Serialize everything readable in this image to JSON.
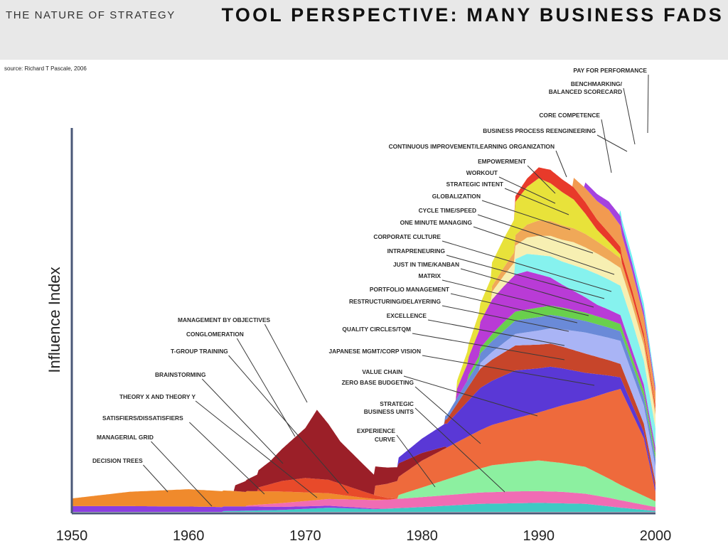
{
  "header": {
    "deck_title": "THE NATURE OF STRATEGY",
    "slide_title": "TOOL PERSPECTIVE: MANY BUSINESS FADS"
  },
  "source_note": "source: Richard T Pascale,  2006",
  "chart_data": {
    "type": "area",
    "title": "",
    "xlabel": "",
    "ylabel": "Influence Index",
    "xlim": [
      1950,
      2000
    ],
    "x_ticks": [
      "1950",
      "1960",
      "1970",
      "1980",
      "1990",
      "2000"
    ],
    "grid": false,
    "legend": "none",
    "layers": [
      {
        "name": "EXPERIENCE CURVE",
        "color": "#3fc9c4",
        "points": [
          [
            1963,
            0.04
          ],
          [
            1968,
            0.1
          ],
          [
            1972,
            0.22
          ],
          [
            1976,
            0.14
          ],
          [
            1980,
            0.25
          ],
          [
            1985,
            0.42
          ],
          [
            1990,
            0.47
          ],
          [
            1994,
            0.42
          ],
          [
            1997,
            0.22
          ],
          [
            2000,
            0.05
          ]
        ]
      },
      {
        "name": "DECISION TREES",
        "color": "#8a3ee0",
        "points": [
          [
            1950,
            0.3
          ],
          [
            1955,
            0.3
          ],
          [
            1960,
            0.28
          ],
          [
            1963,
            0.25
          ],
          [
            1966,
            0.2
          ],
          [
            1968,
            0.16
          ],
          [
            1972,
            0.1
          ],
          [
            1975,
            0.05
          ],
          [
            1977,
            0.0
          ]
        ]
      },
      {
        "name": "STRATEGIC BUSINESS UNITS",
        "color": "#f06cb4",
        "points": [
          [
            1965,
            0.05
          ],
          [
            1968,
            0.2
          ],
          [
            1972,
            0.35
          ],
          [
            1976,
            0.45
          ],
          [
            1980,
            0.52
          ],
          [
            1984,
            0.58
          ],
          [
            1988,
            0.62
          ],
          [
            1992,
            0.6
          ],
          [
            1996,
            0.45
          ],
          [
            2000,
            0.2
          ]
        ]
      },
      {
        "name": "MANAGERIAL GRID",
        "color": "#f08a2c",
        "points": [
          [
            1950,
            0.4
          ],
          [
            1955,
            0.75
          ],
          [
            1960,
            0.9
          ],
          [
            1964,
            0.8
          ],
          [
            1968,
            0.6
          ],
          [
            1972,
            0.3
          ],
          [
            1975,
            0.1
          ],
          [
            1977,
            0.0
          ]
        ]
      },
      {
        "name": "ZERO BASE BUDGETING",
        "color": "#e84a2a",
        "points": [
          [
            1966,
            0.2
          ],
          [
            1968,
            0.55
          ],
          [
            1970,
            0.75
          ],
          [
            1972,
            0.7
          ],
          [
            1974,
            0.45
          ],
          [
            1976,
            0.2
          ],
          [
            1978,
            0.0
          ]
        ]
      },
      {
        "name": "JAPANESE MGMT/CORP VISION",
        "color": "#8cf0a0",
        "points": [
          [
            1978,
            0.2
          ],
          [
            1982,
            0.8
          ],
          [
            1986,
            1.4
          ],
          [
            1990,
            1.6
          ],
          [
            1994,
            1.4
          ],
          [
            1997,
            0.8
          ],
          [
            2000,
            0.3
          ]
        ]
      },
      {
        "name": "PAY FOR PERFORMANCE",
        "color": "#ee6a3c",
        "points": [
          [
            1976,
            0.5
          ],
          [
            1980,
            1.4
          ],
          [
            1985,
            2.0
          ],
          [
            1990,
            2.5
          ],
          [
            1994,
            3.5
          ],
          [
            1997,
            5.0
          ],
          [
            1999,
            3.0
          ],
          [
            2000,
            0.5
          ]
        ]
      },
      {
        "name": "MANAGEMENT BY OBJECTIVES",
        "color": "#9b1f28",
        "points": [
          [
            1964,
            0.3
          ],
          [
            1967,
            1.2
          ],
          [
            1970,
            2.6
          ],
          [
            1971,
            3.6
          ],
          [
            1973,
            2.2
          ],
          [
            1976,
            1.0
          ],
          [
            1980,
            0.4
          ],
          [
            1982,
            0.1
          ]
        ]
      },
      {
        "name": "QUALITY CIRCLES/TQM",
        "color": "#5a38d6",
        "points": [
          [
            1978,
            0.3
          ],
          [
            1982,
            1.2
          ],
          [
            1985,
            2.2
          ],
          [
            1988,
            2.5
          ],
          [
            1991,
            2.2
          ],
          [
            1994,
            1.4
          ],
          [
            1997,
            0.6
          ],
          [
            2000,
            0.2
          ]
        ]
      },
      {
        "name": "EXCELLENCE",
        "color": "#c7452a",
        "points": [
          [
            1982,
            0.2
          ],
          [
            1985,
            1.0
          ],
          [
            1988,
            1.3
          ],
          [
            1991,
            1.2
          ],
          [
            1994,
            1.0
          ],
          [
            1997,
            0.7
          ],
          [
            2000,
            0.3
          ]
        ]
      },
      {
        "name": "RESTRUCTURING/DELAYERING",
        "color": "#a9b4f5",
        "points": [
          [
            1985,
            0.3
          ],
          [
            1988,
            0.6
          ],
          [
            1991,
            0.8
          ],
          [
            1994,
            1.1
          ],
          [
            1997,
            1.2
          ],
          [
            2000,
            0.8
          ]
        ]
      },
      {
        "name": "MATRIX",
        "color": "#6a8ad8",
        "points": [
          [
            1982,
            0.2
          ],
          [
            1985,
            0.5
          ],
          [
            1988,
            0.7
          ],
          [
            1991,
            0.7
          ],
          [
            1994,
            0.6
          ],
          [
            1997,
            0.5
          ],
          [
            2000,
            0.4
          ]
        ]
      },
      {
        "name": "CORPORATE CULTURE",
        "color": "#69d04c",
        "points": [
          [
            1984,
            0.2
          ],
          [
            1987,
            0.45
          ],
          [
            1990,
            0.5
          ],
          [
            1993,
            0.45
          ],
          [
            1996,
            0.4
          ],
          [
            2000,
            0.3
          ]
        ]
      },
      {
        "name": "ONE MINUTE MANAGING",
        "color": "#b93bd6",
        "points": [
          [
            1983,
            0.5
          ],
          [
            1986,
            1.8
          ],
          [
            1989,
            2.0
          ],
          [
            1992,
            1.2
          ],
          [
            1995,
            0.6
          ],
          [
            1998,
            0.4
          ],
          [
            2000,
            0.3
          ]
        ]
      },
      {
        "name": "CYCLE TIME/SPEED",
        "color": "#86f2ee",
        "points": [
          [
            1988,
            0.8
          ],
          [
            1992,
            1.2
          ],
          [
            1995,
            1.6
          ],
          [
            1998,
            1.5
          ],
          [
            2000,
            1.0
          ]
        ]
      },
      {
        "name": "GLOBALIZATION",
        "color": "#f7efb2",
        "points": [
          [
            1986,
            0.4
          ],
          [
            1990,
            1.0
          ],
          [
            1993,
            1.2
          ],
          [
            1996,
            1.0
          ],
          [
            2000,
            0.7
          ]
        ]
      },
      {
        "name": "STRATEGIC INTENT",
        "color": "#f0a858",
        "points": [
          [
            1986,
            0.3
          ],
          [
            1990,
            0.8
          ],
          [
            1994,
            0.7
          ],
          [
            1997,
            0.5
          ],
          [
            2000,
            0.3
          ]
        ]
      },
      {
        "name": "CONTINUOUS IMPROVEMENT/LEARNING ORGANIZATION",
        "color": "#e8e23a",
        "points": [
          [
            1983,
            0.4
          ],
          [
            1987,
            1.5
          ],
          [
            1990,
            2.2
          ],
          [
            1993,
            1.5
          ],
          [
            1995,
            0.6
          ],
          [
            1997,
            0.2
          ]
        ]
      },
      {
        "name": "EMPOWERMENT",
        "color": "#e83a2a",
        "points": [
          [
            1988,
            0.3
          ],
          [
            1991,
            0.7
          ],
          [
            1994,
            0.6
          ],
          [
            1997,
            0.4
          ],
          [
            2000,
            0.2
          ]
        ]
      },
      {
        "name": "CORE COMPETENCE",
        "color": "#f29a50",
        "points": [
          [
            1993,
            0.5
          ],
          [
            1996,
            1.2
          ],
          [
            1998,
            1.0
          ],
          [
            2000,
            0.7
          ]
        ]
      },
      {
        "name": "BUSINESS PROCESS REENGINEERING",
        "color": "#a542e0",
        "points": [
          [
            1994,
            0.3
          ],
          [
            1997,
            0.5
          ],
          [
            2000,
            0.2
          ]
        ]
      },
      {
        "name": "BENCHMARKING/ BALANCED SCORECARD",
        "color": "#6ef0f2",
        "points": [
          [
            1997,
            0.3
          ],
          [
            1999,
            0.4
          ],
          [
            2000,
            0.2
          ]
        ]
      }
    ],
    "annotations": [
      "PAY FOR PERFORMANCE",
      "BENCHMARKING/",
      "BALANCED SCORECARD",
      "CORE COMPETENCE",
      "BUSINESS PROCESS REENGINEERING",
      "CONTINUOUS IMPROVEMENT/LEARNING ORGANIZATION",
      "EMPOWERMENT",
      "WORKOUT",
      "STRATEGIC INTENT",
      "GLOBALIZATION",
      "CYCLE TIME/SPEED",
      "ONE MINUTE MANAGING",
      "CORPORATE CULTURE",
      "INTRAPRENEURING",
      "JUST IN TIME/KANBAN",
      "MATRIX",
      "PORTFOLIO MANAGEMENT",
      "RESTRUCTURING/DELAYERING",
      "EXCELLENCE",
      "QUALITY CIRCLES/TQM",
      "JAPANESE MGMT/CORP VISION",
      "VALUE CHAIN",
      "ZERO BASE BUDGETING",
      "STRATEGIC",
      "BUSINESS UNITS",
      "EXPERIENCE",
      "CURVE",
      "MANAGEMENT BY OBJECTIVES",
      "CONGLOMERATION",
      "T-GROUP TRAINING",
      "BRAINSTORMING",
      "THEORY X AND THEORY Y",
      "SATISFIERS/DISSATISFIERS",
      "MANAGERIAL GRID",
      "DECISION TREES"
    ]
  }
}
